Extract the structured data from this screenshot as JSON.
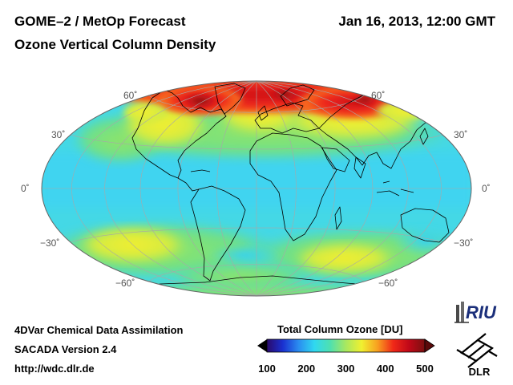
{
  "header": {
    "title": "GOME–2 / MetOp Forecast",
    "subtitle": "Ozone Vertical Column Density",
    "datetime": "Jan 16, 2013, 12:00 GMT"
  },
  "map": {
    "projection": "Hammer-Aitoff (global)",
    "latitude_labels": {
      "n60": "60˚",
      "n30": "30˚",
      "eq": "0˚",
      "s30": "−30˚",
      "s60": "−60˚"
    }
  },
  "colorbar": {
    "title": "Total Column Ozone [DU]",
    "ticks": [
      "100",
      "200",
      "300",
      "400",
      "500"
    ],
    "min": 100,
    "max": 500,
    "colors": [
      "#2a0a6a",
      "#1a30d0",
      "#2a8cf0",
      "#30d8f0",
      "#4ee0b0",
      "#a8e860",
      "#f0f030",
      "#f8a020",
      "#f02818",
      "#c00818",
      "#7a1010"
    ]
  },
  "footer": {
    "line1": "4DVar Chemical Data Assimilation",
    "line2": "SACADA Version 2.4",
    "line3": "http://wdc.dlr.de"
  },
  "logos": {
    "riu": "RIU",
    "dlr": "DLR"
  }
}
